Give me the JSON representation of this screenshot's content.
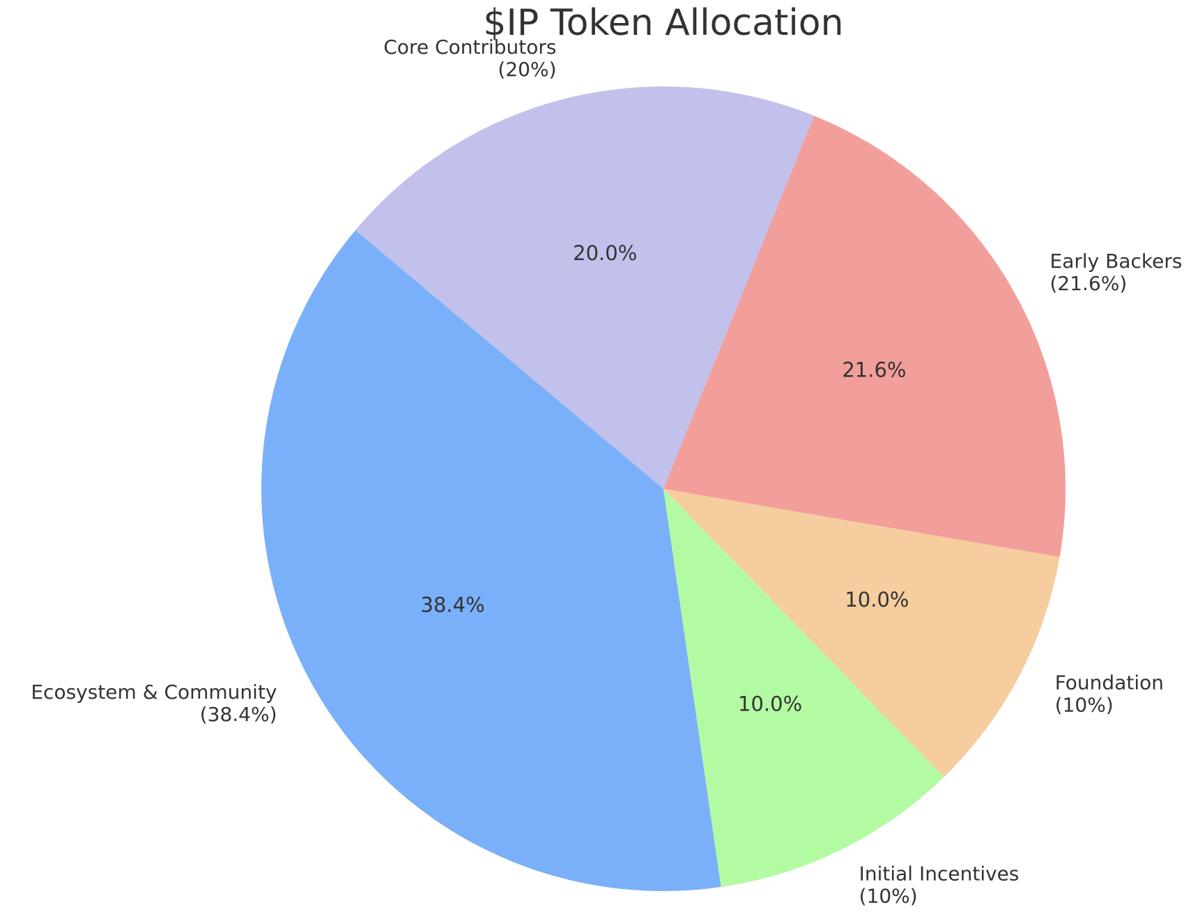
{
  "chart_data": {
    "type": "pie",
    "title": "$IP Token Allocation",
    "slices": [
      {
        "name": "Ecosystem & Community",
        "value": 38.4,
        "label": "Ecosystem & Community",
        "sublabel": "(38.4%)",
        "pct_text": "38.4%",
        "color": "#79b0f9",
        "label_side": "left"
      },
      {
        "name": "Initial Incentives",
        "value": 10.0,
        "label": "Initial Incentives",
        "sublabel": "(10%)",
        "pct_text": "10.0%",
        "color": "#b2fba2",
        "label_side": "right"
      },
      {
        "name": "Foundation",
        "value": 10.0,
        "label": "Foundation",
        "sublabel": "(10%)",
        "pct_text": "10.0%",
        "color": "#f6cd9e",
        "label_side": "right"
      },
      {
        "name": "Early Backers",
        "value": 21.6,
        "label": "Early Backers",
        "sublabel": "(21.6%)",
        "pct_text": "21.6%",
        "color": "#f29e9b",
        "label_side": "right"
      },
      {
        "name": "Core Contributors",
        "value": 20.0,
        "label": "Core Contributors",
        "sublabel": "(20%)",
        "pct_text": "20.0%",
        "color": "#c2c1eb",
        "label_side": "left"
      }
    ],
    "start_angle_deg": 140,
    "direction": "counterclockwise",
    "legend": "none",
    "text_color": "#333333",
    "background": "#ffffff"
  }
}
